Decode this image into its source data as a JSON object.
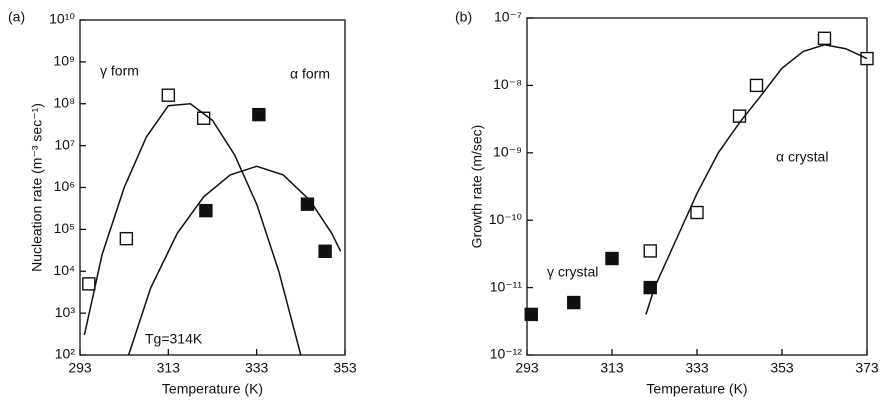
{
  "chart_data": [
    {
      "type": "scatter",
      "panel_label": "(a)",
      "xlabel": "Temperature  (K)",
      "ylabel": "Nucleation rate  (m⁻³ sec⁻¹)",
      "log_y": true,
      "xlim": [
        293,
        353
      ],
      "xticks": [
        293,
        313,
        333,
        353
      ],
      "ylim": [
        100,
        10000000000
      ],
      "yticks": [
        {
          "value": 100,
          "label": "10²"
        },
        {
          "value": 1000,
          "label": "10³"
        },
        {
          "value": 10000,
          "label": "10⁴"
        },
        {
          "value": 100000,
          "label": "10⁵"
        },
        {
          "value": 1000000,
          "label": "10⁶"
        },
        {
          "value": 10000000,
          "label": "10⁷"
        },
        {
          "value": 100000000,
          "label": "10⁸"
        },
        {
          "value": 1000000000,
          "label": "10⁹"
        },
        {
          "value": 10000000000,
          "label": "10¹⁰"
        }
      ],
      "annotations": [
        "γ form",
        "α form",
        "Tg=314K"
      ],
      "series": [
        {
          "marker": "open-square",
          "color": "#111111",
          "x": [
            295,
            303.5,
            313,
            321
          ],
          "values": [
            5000,
            60000,
            160000000,
            45000000
          ]
        },
        {
          "marker": "filled-square",
          "color": "#111111",
          "x": [
            333.5,
            321.5,
            344.5,
            348.5
          ],
          "values": [
            55000000,
            280000,
            400000,
            30000
          ]
        },
        {
          "marker": "line",
          "color": "#111111",
          "x": [
            294,
            298,
            303,
            308,
            313,
            318,
            323,
            328,
            333,
            338,
            343
          ],
          "values": [
            300,
            25000,
            1000000,
            16000000,
            90000000,
            100000000,
            40000000,
            6000000,
            400000,
            10000,
            100
          ]
        },
        {
          "marker": "line",
          "color": "#111111",
          "x": [
            304,
            309,
            315,
            321,
            327,
            333,
            339,
            345,
            350,
            352
          ],
          "values": [
            100,
            4000,
            80000,
            600000,
            2000000,
            3200000,
            2000000,
            500000,
            80000,
            30000
          ]
        }
      ]
    },
    {
      "type": "scatter",
      "panel_label": "(b)",
      "xlabel": "Temperature  (K)",
      "ylabel": "Growth rate  (m/sec)",
      "log_y": true,
      "xlim": [
        293,
        373
      ],
      "xticks": [
        293,
        313,
        333,
        353,
        373
      ],
      "ylim": [
        1e-12,
        1e-07
      ],
      "yticks": [
        {
          "value": 1e-12,
          "label": "10⁻¹²"
        },
        {
          "value": 1e-11,
          "label": "10⁻¹¹"
        },
        {
          "value": 1e-10,
          "label": "10⁻¹⁰"
        },
        {
          "value": 1e-09,
          "label": "10⁻⁹"
        },
        {
          "value": 1e-08,
          "label": "10⁻⁸"
        },
        {
          "value": 1e-07,
          "label": "10⁻⁷"
        }
      ],
      "annotations": [
        "α crystal",
        "γ crystal"
      ],
      "series": [
        {
          "marker": "open-square",
          "color": "#111111",
          "x": [
            322,
            333,
            343,
            347,
            363,
            373
          ],
          "values": [
            3.5e-11,
            1.3e-10,
            3.5e-09,
            1e-08,
            5e-08,
            2.5e-08
          ]
        },
        {
          "marker": "filled-square",
          "color": "#111111",
          "x": [
            294,
            304,
            313,
            322
          ],
          "values": [
            4e-12,
            6e-12,
            2.7e-11,
            1e-11
          ]
        },
        {
          "marker": "line",
          "color": "#111111",
          "x": [
            321,
            323,
            328,
            333,
            338,
            343,
            348,
            353,
            358,
            363,
            368,
            373
          ],
          "values": [
            4e-12,
            1e-11,
            5e-11,
            2.5e-10,
            1e-09,
            2.8e-09,
            7e-09,
            1.8e-08,
            3.2e-08,
            4e-08,
            3.5e-08,
            2.5e-08
          ]
        }
      ]
    }
  ]
}
